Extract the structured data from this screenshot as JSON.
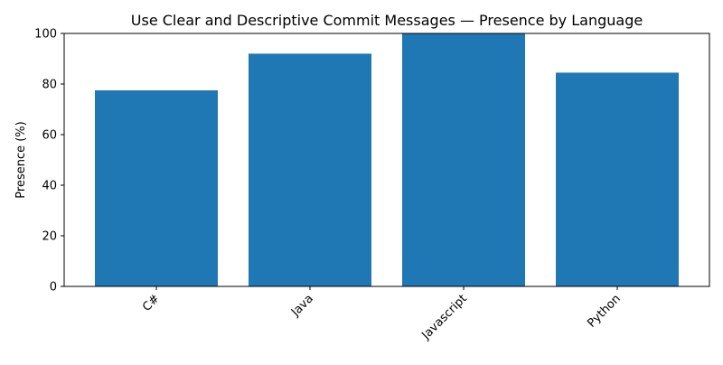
{
  "chart_data": {
    "type": "bar",
    "title": "Use Clear and Descriptive Commit Messages — Presence by Language",
    "xlabel": "",
    "ylabel": "Presence (%)",
    "categories": [
      "C#",
      "Java",
      "Javascript",
      "Python"
    ],
    "values": [
      77.5,
      92.0,
      100.0,
      84.5
    ],
    "ylim": [
      0,
      100
    ],
    "yticks": [
      0,
      20,
      40,
      60,
      80,
      100
    ],
    "grid": false,
    "legend": "none",
    "colors": {
      "bar": "#1f77b4",
      "axis": "#000000",
      "text": "#000000",
      "background": "#ffffff"
    }
  }
}
